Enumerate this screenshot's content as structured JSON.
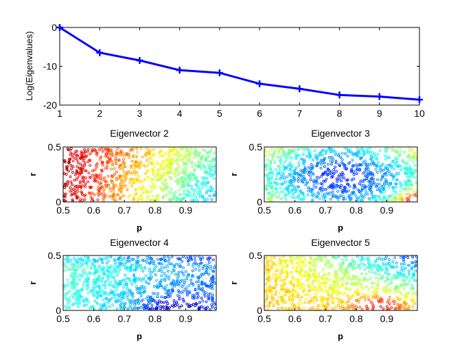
{
  "chart_data": [
    {
      "type": "line",
      "id": "eigenvalues",
      "title": "",
      "xlabel": "",
      "ylabel": "Log(Eigenvalues)",
      "x": [
        1,
        2,
        3,
        4,
        5,
        6,
        7,
        8,
        9,
        10
      ],
      "values": [
        0,
        -6.5,
        -8.5,
        -11,
        -11.7,
        -14.5,
        -15.8,
        -17.4,
        -17.8,
        -18.6
      ],
      "xlim": [
        1,
        10
      ],
      "ylim": [
        -20,
        0
      ],
      "xticks": [
        "1",
        "2",
        "3",
        "4",
        "5",
        "6",
        "7",
        "8",
        "9",
        "10"
      ],
      "yticks": [
        "0",
        "-10",
        "-20"
      ],
      "line_color": "#0000ff",
      "marker": "+"
    },
    {
      "type": "scatter",
      "id": "ev2",
      "title": "Eigenvector 2",
      "xlabel": "p",
      "ylabel": "r",
      "xlim": [
        0.5,
        1.0
      ],
      "ylim": [
        0,
        0.5
      ],
      "xticks": [
        "0.5",
        "0.6",
        "0.7",
        "0.8",
        "0.9"
      ],
      "yticks": [
        "0",
        "0.5"
      ],
      "colormap": "jet",
      "point_count": 900,
      "color_trend": "red at low p, through orange/yellow, to green-cyan at high p"
    },
    {
      "type": "scatter",
      "id": "ev3",
      "title": "Eigenvector 3",
      "xlabel": "p",
      "ylabel": "r",
      "xlim": [
        0.5,
        1.0
      ],
      "ylim": [
        0,
        0.5
      ],
      "xticks": [
        "0.5",
        "0.6",
        "0.7",
        "0.8",
        "0.9"
      ],
      "yticks": [
        "0",
        "0.5"
      ],
      "colormap": "jet",
      "point_count": 900,
      "color_trend": "cyan at edges, dark blue in center, yellow-orange at lower-right corner"
    },
    {
      "type": "scatter",
      "id": "ev4",
      "title": "Eigenvector 4",
      "xlabel": "p",
      "ylabel": "r",
      "xlim": [
        0.5,
        1.0
      ],
      "ylim": [
        0,
        0.5
      ],
      "xticks": [
        "0.5",
        "0.6",
        "0.7",
        "0.8",
        "0.9"
      ],
      "yticks": [
        "0",
        "0.5"
      ],
      "colormap": "jet",
      "point_count": 900,
      "color_trend": "cyan at bottom-left, blue across most of the region, darkest near p=0.85 bottom"
    },
    {
      "type": "scatter",
      "id": "ev5",
      "title": "Eigenvector 5",
      "xlabel": "p",
      "ylabel": "r",
      "xlim": [
        0.5,
        1.0
      ],
      "ylim": [
        0,
        0.5
      ],
      "xticks": [
        "0.5",
        "0.6",
        "0.7",
        "0.8",
        "0.9"
      ],
      "yticks": [
        "0",
        "0.5"
      ],
      "colormap": "jet",
      "point_count": 900,
      "color_trend": "orange/yellow on left and bottom, red hotspot near p=0.85 low r, cyan/blue at upper right"
    }
  ]
}
